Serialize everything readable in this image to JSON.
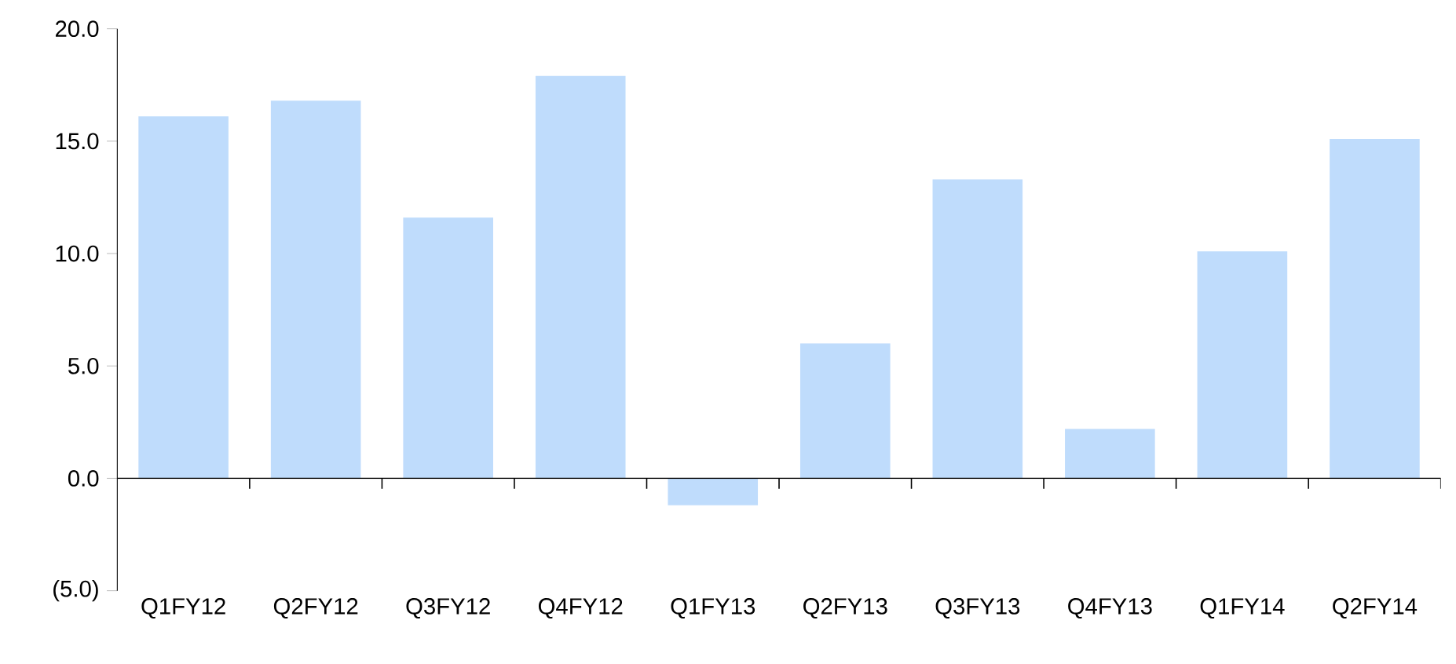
{
  "chart_data": {
    "type": "bar",
    "categories": [
      "Q1FY12",
      "Q2FY12",
      "Q3FY12",
      "Q4FY12",
      "Q1FY13",
      "Q2FY13",
      "Q3FY13",
      "Q4FY13",
      "Q1FY14",
      "Q2FY14"
    ],
    "values": [
      16.1,
      16.8,
      11.6,
      17.9,
      -1.2,
      6.0,
      13.3,
      2.2,
      10.1,
      15.1
    ],
    "color": "#bfdcfc",
    "ylim": [
      -5,
      20
    ],
    "yticks": [
      {
        "value": -5,
        "label": "(5.0)"
      },
      {
        "value": 0,
        "label": "0.0"
      },
      {
        "value": 5,
        "label": "5.0"
      },
      {
        "value": 10,
        "label": "10.0"
      },
      {
        "value": 15,
        "label": "15.0"
      },
      {
        "value": 20,
        "label": "20.0"
      }
    ]
  }
}
